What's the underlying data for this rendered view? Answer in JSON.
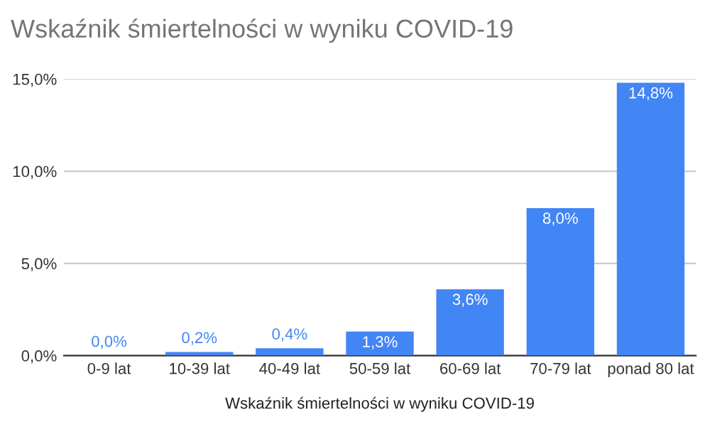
{
  "chart_data": {
    "type": "bar",
    "title": "Wskaźnik śmiertelności w wyniku COVID-19",
    "xlabel": "Wskaźnik śmiertelności w wyniku COVID-19",
    "categories": [
      "0-9 lat",
      "10-39 lat",
      "40-49 lat",
      "50-59 lat",
      "60-69 lat",
      "70-79 lat",
      "ponad 80 lat"
    ],
    "values": [
      0.0,
      0.2,
      0.4,
      1.3,
      3.6,
      8.0,
      14.8
    ],
    "color": "#4285f4",
    "value_labels": [
      "0,0%",
      "0,2%",
      "0,4%",
      "1,3%",
      "3,6%",
      "8,0%",
      "14,8%"
    ],
    "ylim": [
      0,
      15
    ],
    "yticks": [
      {
        "value": 0,
        "label": "0,0%"
      },
      {
        "value": 5,
        "label": "5,0%"
      },
      {
        "value": 10,
        "label": "10,0%"
      },
      {
        "value": 15,
        "label": "15,0%"
      }
    ],
    "grid": "y"
  }
}
